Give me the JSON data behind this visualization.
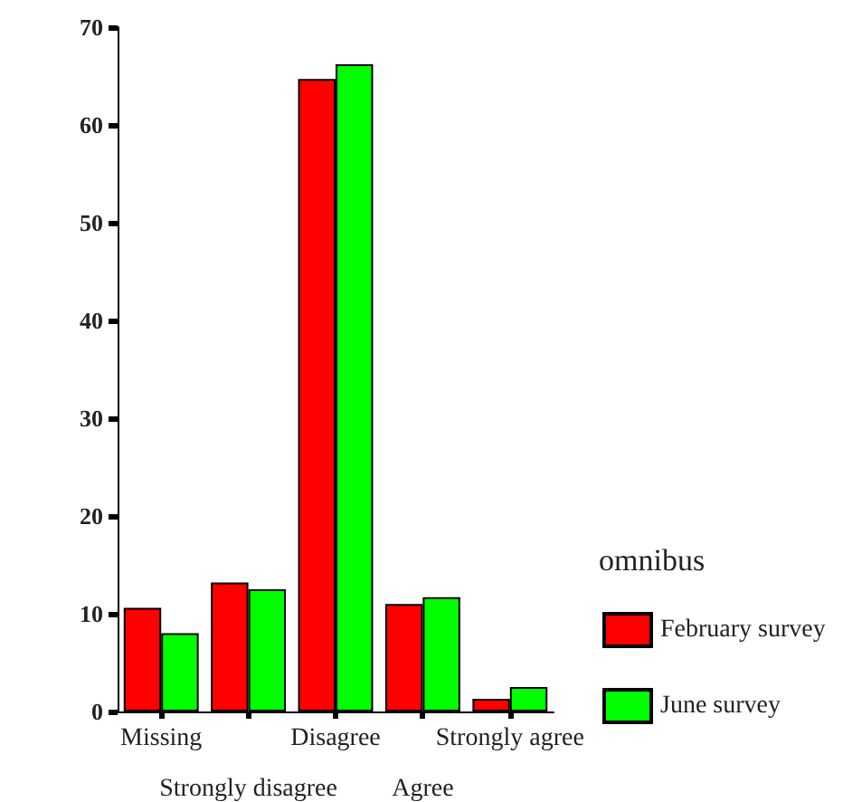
{
  "chart_data": {
    "type": "bar",
    "categories": [
      "Missing",
      "Strongly disagree",
      "Disagree",
      "Agree",
      "Strongly agree"
    ],
    "series": [
      {
        "name": "February survey",
        "color": "#ff0000",
        "values": [
          10.6,
          13.2,
          64.7,
          11.0,
          1.3
        ]
      },
      {
        "name": "June survey",
        "color": "#00ff00",
        "values": [
          8.0,
          12.5,
          66.2,
          11.7,
          2.5
        ]
      }
    ],
    "ylim": [
      0,
      70
    ],
    "yticks": [
      0,
      10,
      20,
      30,
      40,
      50,
      60,
      70
    ],
    "grid": false,
    "legend": "bottom right",
    "legend_title": "omnibus"
  }
}
